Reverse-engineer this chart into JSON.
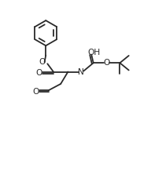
{
  "bg_color": "#ffffff",
  "line_color": "#2a2a2a",
  "line_width": 1.3,
  "figsize": [
    2.07,
    2.18
  ],
  "dpi": 100,
  "font_size": 7.2,
  "xlim": [
    0,
    10
  ],
  "ylim": [
    0,
    10.5
  ]
}
